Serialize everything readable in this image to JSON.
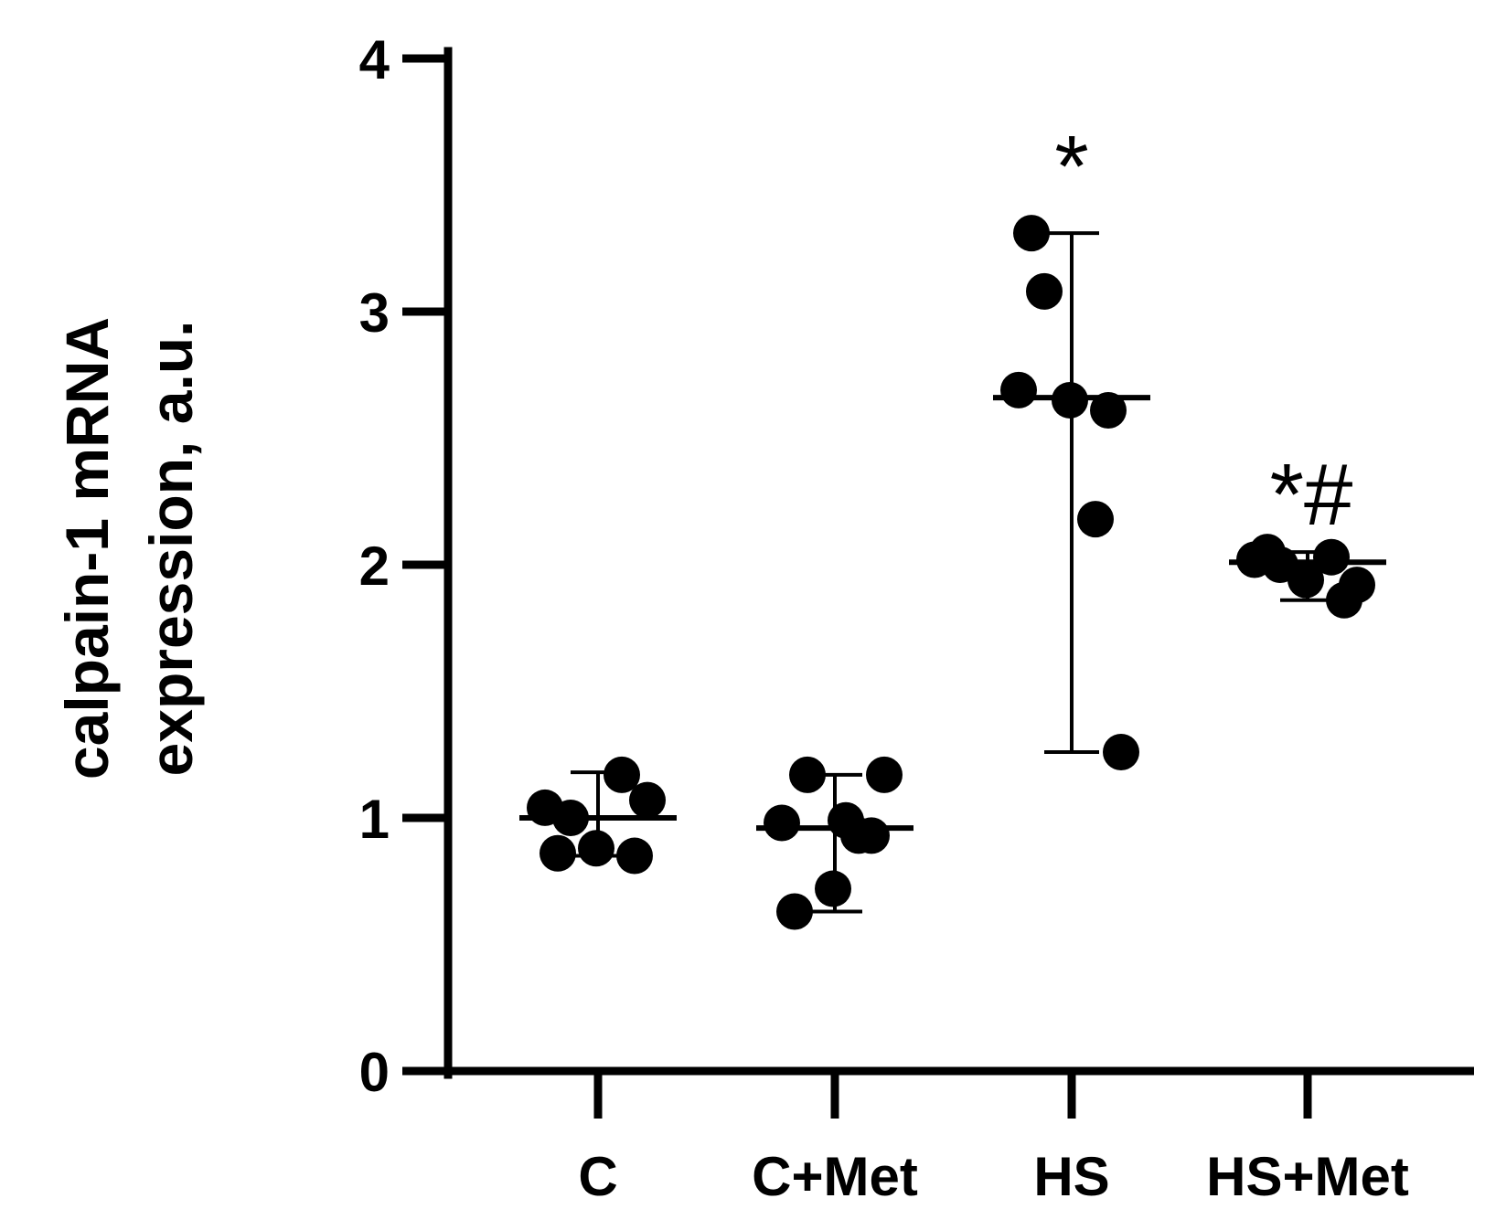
{
  "chart_data": {
    "type": "scatter",
    "ylabel_lines": [
      "calpain-1 mRNA",
      "expression, a.u."
    ],
    "xlabel": "",
    "ylim": [
      0,
      4
    ],
    "y_ticks": [
      0,
      1,
      2,
      3,
      4
    ],
    "y_tick_labels": [
      "0",
      "1",
      "2",
      "3",
      "4"
    ],
    "categories": [
      "C",
      "C+Met",
      "HS",
      "HS+Met"
    ],
    "grid": false,
    "point_color": "#000000",
    "groups": [
      {
        "category": "C",
        "points": [
          1.04,
          1.0,
          0.88,
          1.17,
          1.07,
          0.86,
          0.85
        ],
        "median": 1.0,
        "range": [
          0.85,
          1.18
        ],
        "annotation": ""
      },
      {
        "category": "C+Met",
        "points": [
          0.98,
          1.17,
          0.72,
          0.93,
          1.17,
          0.63,
          0.93,
          0.99
        ],
        "median": 0.96,
        "range": [
          0.63,
          1.17
        ],
        "annotation": ""
      },
      {
        "category": "HS",
        "points": [
          2.69,
          3.08,
          2.65,
          2.18,
          1.26,
          3.31,
          2.61
        ],
        "median": 2.66,
        "range": [
          1.26,
          3.31
        ],
        "annotation": "*"
      },
      {
        "category": "HS+Met",
        "points": [
          2.02,
          2.0,
          1.94,
          2.03,
          1.92,
          2.05,
          1.86
        ],
        "median": 2.01,
        "range": [
          1.86,
          2.05
        ],
        "annotation": "*#"
      }
    ]
  }
}
